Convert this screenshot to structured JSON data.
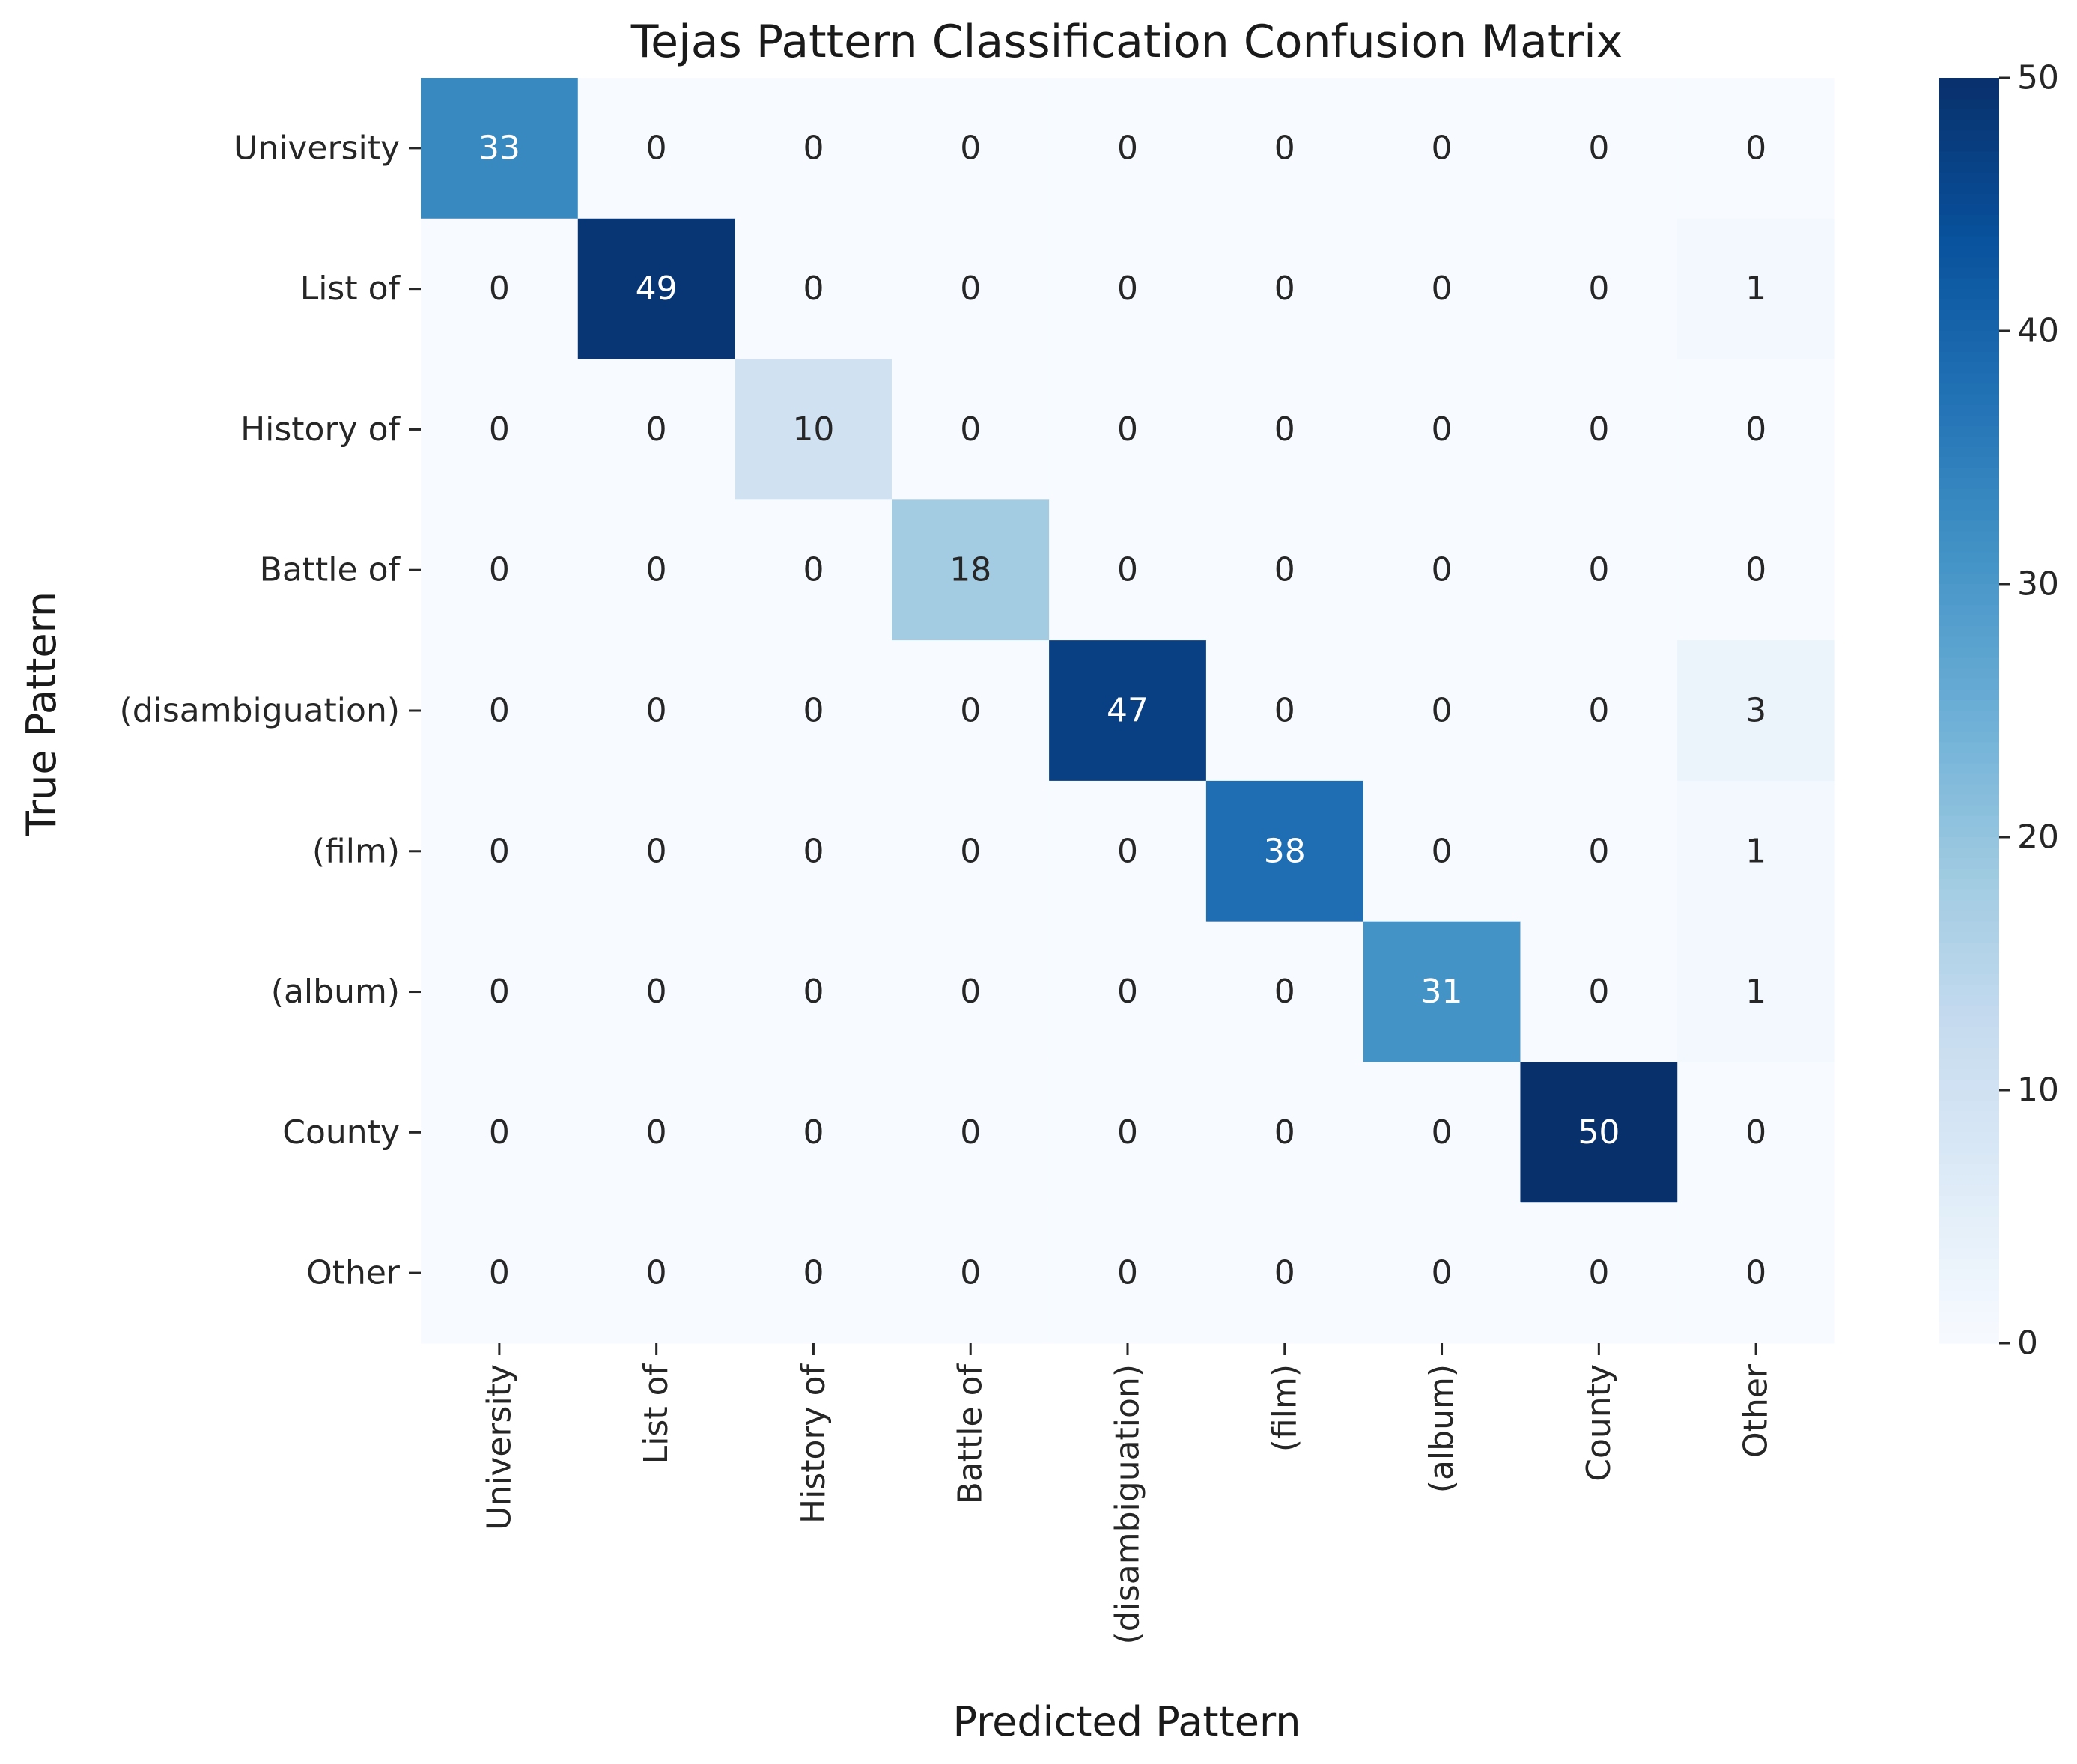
{
  "chart_data": {
    "type": "heatmap",
    "title": "Tejas Pattern Classification Confusion Matrix",
    "xlabel": "Predicted Pattern",
    "ylabel": "True Pattern",
    "row_labels": [
      "University",
      "List of",
      "History of",
      "Battle of",
      "(disambiguation)",
      "(film)",
      "(album)",
      "County",
      "Other"
    ],
    "col_labels": [
      "University",
      "List of",
      "History of",
      "Battle of",
      "(disambiguation)",
      "(film)",
      "(album)",
      "County",
      "Other"
    ],
    "values": [
      [
        33,
        0,
        0,
        0,
        0,
        0,
        0,
        0,
        0
      ],
      [
        0,
        49,
        0,
        0,
        0,
        0,
        0,
        0,
        1
      ],
      [
        0,
        0,
        10,
        0,
        0,
        0,
        0,
        0,
        0
      ],
      [
        0,
        0,
        0,
        18,
        0,
        0,
        0,
        0,
        0
      ],
      [
        0,
        0,
        0,
        0,
        47,
        0,
        0,
        0,
        3
      ],
      [
        0,
        0,
        0,
        0,
        0,
        38,
        0,
        0,
        1
      ],
      [
        0,
        0,
        0,
        0,
        0,
        0,
        31,
        0,
        1
      ],
      [
        0,
        0,
        0,
        0,
        0,
        0,
        0,
        50,
        0
      ],
      [
        0,
        0,
        0,
        0,
        0,
        0,
        0,
        0,
        0
      ]
    ],
    "colormap": "Blues",
    "colorbar": {
      "range": [
        0,
        50
      ],
      "ticks": [
        0,
        10,
        20,
        30,
        40,
        50
      ]
    },
    "annotations": true
  }
}
